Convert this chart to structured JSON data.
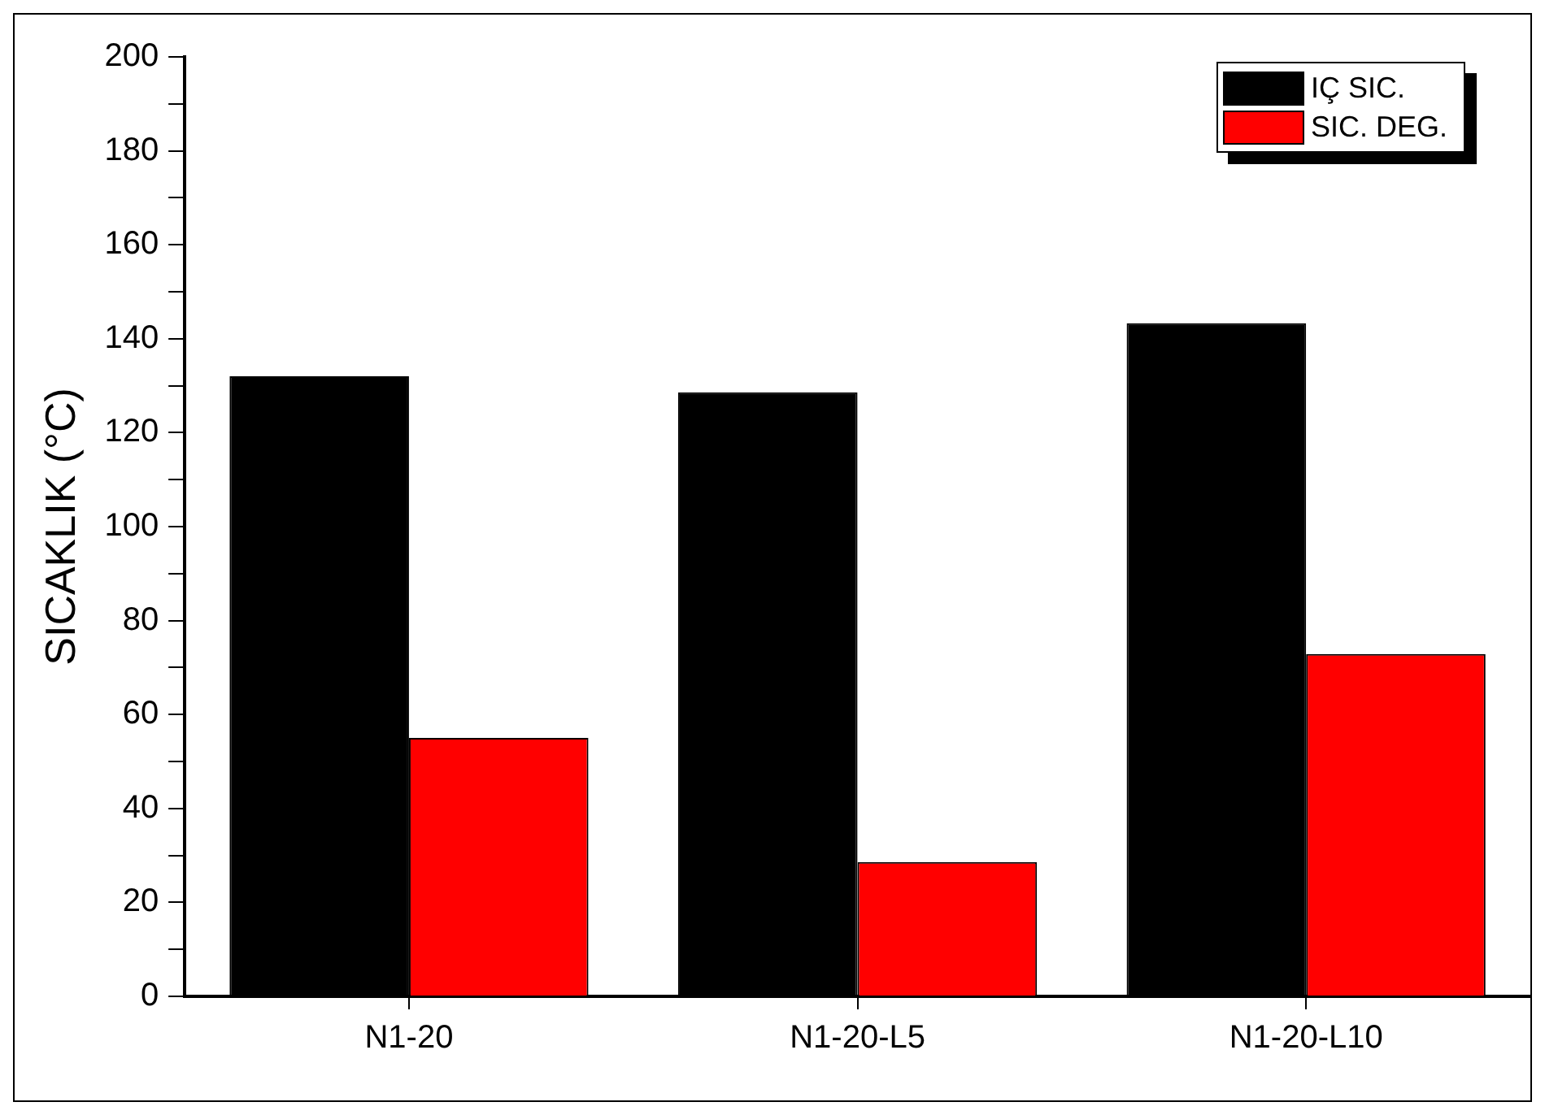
{
  "chart_data": {
    "type": "bar",
    "ylabel": "SICAKLIK (°C)",
    "categories": [
      "N1-20",
      "N1-20-L5",
      "N1-20-L10"
    ],
    "series": [
      {
        "name": "IÇ SIC.",
        "color": "#000000",
        "values": [
          132,
          128.6,
          143.3
        ]
      },
      {
        "name": "SIC. DEG.",
        "color": "#ff0000",
        "values": [
          55,
          28.6,
          72.9
        ]
      }
    ],
    "ylim": [
      0,
      200
    ],
    "yticks": [
      0,
      {
        "value": 10,
        "label": null
      },
      20,
      {
        "value": 30,
        "label": null
      },
      40,
      {
        "value": 50,
        "label": null
      },
      60,
      {
        "value": 70,
        "label": null
      },
      80,
      {
        "value": 90,
        "label": null
      },
      100,
      {
        "value": 110,
        "label": null
      },
      120,
      {
        "value": 130,
        "label": null
      },
      140,
      {
        "value": 150,
        "label": null
      },
      160,
      {
        "value": 170,
        "label": null
      },
      180,
      {
        "value": 190,
        "label": null
      },
      200
    ],
    "legend": "top right"
  }
}
